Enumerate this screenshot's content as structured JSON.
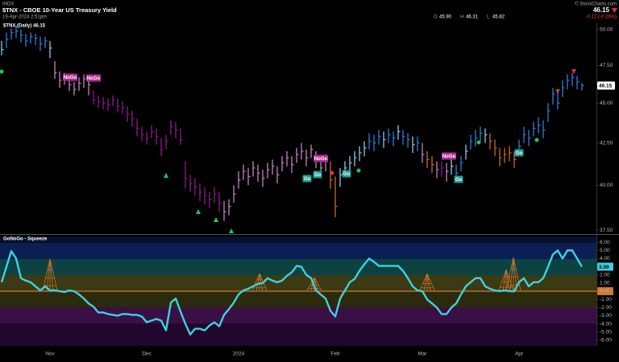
{
  "header": {
    "exchange": "INDX",
    "title": "$TNX - CBOE 10-Year US Treasury Yield",
    "date": "19-Apr-2024 2:51pm",
    "watermark": "© StockCharts.com",
    "last": "46.15",
    "ohlc": [
      {
        "label": "O",
        "value": "45.90"
      },
      {
        "label": "H",
        "value": "46.31"
      },
      {
        "label": "L",
        "value": "45.82"
      }
    ],
    "change": "-0.12 (-0.26%)"
  },
  "chart_data": [
    {
      "type": "ohlc",
      "title": "$TNX (Daily) 46.15",
      "log_scale": true,
      "categories": [
        null,
        null,
        null,
        null,
        null,
        null,
        null,
        null,
        null,
        null,
        "Nov",
        null,
        null,
        null,
        null,
        null,
        null,
        null,
        null,
        null,
        null,
        null,
        null,
        null,
        null,
        null,
        null,
        null,
        null,
        null,
        "Dec",
        null,
        null,
        null,
        null,
        null,
        null,
        null,
        null,
        null,
        null,
        null,
        null,
        null,
        null,
        null,
        null,
        null,
        null,
        "2024",
        null,
        null,
        null,
        null,
        null,
        null,
        null,
        null,
        null,
        null,
        null,
        null,
        null,
        null,
        null,
        null,
        null,
        null,
        null,
        "Feb",
        null,
        null,
        null,
        null,
        null,
        null,
        null,
        null,
        null,
        null,
        null,
        null,
        null,
        null,
        null,
        null,
        null,
        "Mar",
        null,
        null,
        null,
        null,
        null,
        null,
        null,
        null,
        null,
        null,
        null,
        null,
        null,
        null,
        null,
        null,
        null,
        null,
        null,
        "Apr",
        null,
        null,
        null,
        null,
        null,
        null,
        null,
        null,
        null,
        null,
        null,
        null,
        null
      ],
      "close": [
        48.6,
        49.3,
        49.8,
        49.9,
        49.6,
        49.2,
        49.5,
        49.4,
        49.0,
        49.2,
        48.7,
        47.0,
        46.5,
        46.8,
        46.2,
        45.9,
        46.3,
        46.6,
        46.2,
        45.2,
        45.1,
        45.0,
        44.9,
        45.2,
        44.8,
        44.7,
        44.3,
        44.0,
        43.4,
        43.0,
        42.8,
        43.2,
        42.9,
        42.1,
        42.6,
        43.5,
        43.3,
        42.7,
        40.4,
        40.1,
        39.9,
        39.6,
        39.4,
        39.2,
        39.5,
        39.0,
        38.5,
        38.8,
        39.5,
        40.3,
        40.8,
        40.5,
        41.0,
        40.7,
        40.4,
        40.9,
        41.1,
        40.6,
        41.3,
        41.6,
        41.2,
        41.8,
        42.0,
        41.6,
        42.1,
        41.5,
        41.0,
        41.4,
        40.3,
        38.8,
        40.6,
        41.0,
        41.3,
        41.6,
        41.9,
        42.2,
        42.6,
        42.5,
        42.9,
        42.7,
        43.0,
        42.8,
        43.2,
        42.9,
        42.7,
        42.4,
        42.5,
        41.8,
        41.5,
        41.2,
        40.9,
        41.0,
        40.8,
        41.1,
        40.7,
        41.3,
        42.0,
        42.6,
        42.8,
        43.1,
        43.0,
        42.6,
        42.2,
        41.6,
        41.8,
        41.9,
        41.5,
        42.3,
        43.0,
        42.8,
        43.4,
        43.6,
        43.3,
        44.5,
        45.6,
        45.0,
        46.0,
        46.5,
        46.7,
        46.4,
        46.15
      ],
      "high": [
        49.2,
        49.8,
        50.1,
        50.3,
        50.0,
        49.7,
        49.8,
        49.7,
        49.5,
        49.5,
        49.2,
        47.8,
        47.1,
        47.0,
        46.8,
        46.4,
        46.7,
        46.9,
        46.7,
        45.8,
        45.5,
        45.4,
        45.3,
        45.5,
        45.3,
        45.1,
        44.8,
        44.5,
        44.0,
        43.5,
        43.2,
        43.6,
        43.4,
        42.8,
        43.0,
        43.9,
        43.8,
        43.4,
        41.4,
        40.6,
        40.4,
        40.1,
        39.9,
        39.6,
        39.9,
        39.6,
        39.1,
        39.2,
        40.0,
        40.8,
        41.2,
        41.0,
        41.4,
        41.2,
        40.9,
        41.3,
        41.5,
        41.1,
        41.7,
        42.0,
        41.7,
        42.2,
        42.5,
        42.1,
        42.4,
        42.0,
        41.5,
        41.8,
        41.4,
        40.5,
        41.0,
        41.4,
        41.7,
        42.0,
        42.3,
        42.6,
        43.1,
        43.0,
        43.3,
        43.2,
        43.4,
        43.2,
        43.6,
        43.3,
        43.1,
        42.9,
        42.9,
        42.5,
        42.0,
        41.7,
        41.4,
        41.4,
        41.3,
        41.5,
        41.2,
        41.7,
        42.4,
        43.0,
        43.3,
        43.5,
        43.4,
        43.1,
        42.7,
        42.2,
        42.2,
        42.3,
        42.0,
        42.7,
        43.5,
        43.3,
        43.8,
        44.1,
        43.9,
        45.0,
        46.0,
        45.8,
        46.5,
        46.9,
        47.0,
        46.8,
        46.31
      ],
      "low": [
        48.2,
        48.7,
        49.3,
        49.4,
        49.1,
        48.8,
        49.0,
        48.9,
        48.5,
        48.7,
        48.0,
        46.6,
        46.0,
        46.2,
        45.8,
        45.5,
        45.8,
        46.0,
        45.5,
        44.9,
        44.7,
        44.6,
        44.5,
        44.8,
        44.4,
        44.3,
        43.8,
        43.5,
        42.9,
        42.6,
        42.4,
        42.8,
        42.4,
        41.7,
        42.1,
        43.0,
        42.8,
        42.4,
        39.8,
        39.6,
        39.4,
        39.1,
        38.9,
        38.7,
        39.0,
        38.5,
        38.0,
        38.3,
        39.0,
        39.8,
        40.3,
        40.0,
        40.5,
        40.2,
        39.9,
        40.4,
        40.6,
        40.1,
        40.8,
        41.1,
        40.7,
        41.3,
        41.5,
        41.1,
        41.6,
        41.0,
        40.4,
        40.8,
        39.8,
        38.2,
        39.9,
        40.5,
        40.8,
        41.1,
        41.4,
        41.7,
        42.1,
        42.0,
        42.4,
        42.2,
        42.5,
        42.3,
        42.7,
        42.4,
        42.2,
        41.9,
        42.0,
        41.3,
        41.0,
        40.7,
        40.4,
        40.5,
        40.2,
        40.6,
        40.2,
        40.8,
        41.5,
        42.1,
        42.3,
        42.6,
        42.5,
        42.1,
        41.7,
        41.1,
        41.3,
        41.4,
        41.0,
        41.8,
        42.5,
        42.3,
        42.9,
        43.1,
        42.8,
        43.8,
        44.9,
        44.6,
        45.4,
        45.9,
        46.1,
        45.9,
        45.82
      ],
      "colors": [
        "#8fc8ee",
        "#2f7fd8",
        "#2f7fd8",
        "#2f7fd8",
        "#2f7fd8",
        "#2f7fd8",
        "#2f7fd8",
        "#2f7fd8",
        "#2f7fd8",
        "#2f7fd8",
        "#8fc8ee",
        "#c284c2",
        "#c284c2",
        "#c284c2",
        "#c284c2",
        "#c284c2",
        "#c284c2",
        "#c284c2",
        "#c284c2",
        "#8a1c8a",
        "#8a1c8a",
        "#8a1c8a",
        "#8a1c8a",
        "#8a1c8a",
        "#8a1c8a",
        "#8a1c8a",
        "#8a1c8a",
        "#8a1c8a",
        "#8a1c8a",
        "#8a1c8a",
        "#8a1c8a",
        "#8a1c8a",
        "#8a1c8a",
        "#8a1c8a",
        "#8a1c8a",
        "#8a1c8a",
        "#8a1c8a",
        "#8a1c8a",
        "#8a1c8a",
        "#8a1c8a",
        "#8a1c8a",
        "#8a1c8a",
        "#8a1c8a",
        "#8a1c8a",
        "#8a1c8a",
        "#8a1c8a",
        "#c284c2",
        "#c284c2",
        "#c284c2",
        "#c284c2",
        "#c284c2",
        "#c284c2",
        "#c284c2",
        "#c284c2",
        "#c284c2",
        "#c284c2",
        "#c284c2",
        "#c284c2",
        "#c284c2",
        "#c284c2",
        "#c284c2",
        "#c284c2",
        "#c284c2",
        "#c284c2",
        "#c284c2",
        "#c284c2",
        "#c284c2",
        "#c284c2",
        "#c96a2e",
        "#c96a2e",
        "#8fc8ee",
        "#8fc8ee",
        "#8fc8ee",
        "#8fc8ee",
        "#8fc8ee",
        "#8fc8ee",
        "#2f7fd8",
        "#2f7fd8",
        "#2f7fd8",
        "#8fc8ee",
        "#2f7fd8",
        "#2f7fd8",
        "#8fc8ee",
        "#2f7fd8",
        "#2f7fd8",
        "#8fc8ee",
        "#2f7fd8",
        "#c284c2",
        "#c96a2e",
        "#c96a2e",
        "#c284c2",
        "#8a1c8a",
        "#c284c2",
        "#8fc8ee",
        "#2f7fd8",
        "#2f7fd8",
        "#8fc8ee",
        "#2f7fd8",
        "#2f7fd8",
        "#2f7fd8",
        "#8fc8ee",
        "#c96a2e",
        "#c96a2e",
        "#c96a2e",
        "#c96a2e",
        "#c96a2e",
        "#c96a2e",
        "#2f7fd8",
        "#2f7fd8",
        "#2f7fd8",
        "#2f7fd8",
        "#2f7fd8",
        "#2f7fd8",
        "#2f7fd8",
        "#2f7fd8",
        "#2f7fd8",
        "#2f7fd8",
        "#2f7fd8",
        "#2f7fd8",
        "#2f7fd8",
        "#2f7fd8"
      ],
      "ylim": [
        37.33,
        50.52
      ],
      "yticks": [
        {
          "value": 37.5,
          "label": "37.50"
        },
        {
          "value": 40,
          "label": "40.00"
        },
        {
          "value": 42.5,
          "label": "42.50"
        },
        {
          "value": 45,
          "label": "45.00"
        },
        {
          "value": 47.5,
          "label": "47.50"
        },
        {
          "value": 50,
          "label": "50.00"
        }
      ],
      "annotations": [
        "NoGo",
        "NoGo",
        "NoGo",
        "Go",
        "Go",
        "Go",
        "NoGo",
        "Go",
        "Go"
      ]
    },
    {
      "type": "line",
      "title": "GoNoGo - Squeeze",
      "color": "#3fd0e0",
      "values": [
        1.1,
        3.0,
        4.9,
        4.0,
        1.6,
        1.3,
        1.1,
        0.6,
        0.1,
        0.6,
        0.1,
        0.1,
        0.0,
        -0.1,
        0.1,
        0.0,
        -0.4,
        -0.9,
        -1.5,
        -1.9,
        -2.6,
        -2.6,
        -2.8,
        -2.9,
        -3.0,
        -2.8,
        -2.8,
        -2.9,
        -2.9,
        -3.1,
        -3.8,
        -3.6,
        -3.4,
        -3.6,
        -4.8,
        -1.4,
        -0.9,
        -2.5,
        -4.0,
        -5.3,
        -4.6,
        -4.6,
        -4.8,
        -4.2,
        -3.8,
        -4.3,
        -2.9,
        -2.2,
        -1.4,
        -0.4,
        0.1,
        0.3,
        0.6,
        0.9,
        1.0,
        1.6,
        1.3,
        1.1,
        1.3,
        1.9,
        2.3,
        3.1,
        3.0,
        2.0,
        1.6,
        0.1,
        -0.4,
        -0.9,
        -2.4,
        -3.1,
        -0.9,
        0.1,
        1.1,
        1.5,
        2.5,
        3.3,
        4.0,
        3.6,
        3.1,
        3.1,
        3.1,
        3.1,
        3.1,
        2.5,
        1.6,
        0.6,
        0.1,
        0.0,
        -1.0,
        -1.5,
        -2.0,
        -2.8,
        -2.8,
        -2.0,
        -1.5,
        -0.4,
        0.6,
        1.1,
        1.6,
        1.6,
        0.6,
        0.3,
        0.1,
        0.0,
        0.1,
        0.0,
        0.0,
        1.1,
        1.6,
        0.6,
        1.1,
        1.1,
        1.6,
        3.0,
        4.5,
        5.0,
        4.0,
        5.0,
        5.0,
        4.0,
        3.0
      ],
      "last_label": "3.00",
      "ylim": [
        -6.7,
        6.7
      ],
      "yticks": [
        {
          "value": -6,
          "label": "-6.00"
        },
        {
          "value": -5,
          "label": "-5.00"
        },
        {
          "value": -4,
          "label": "-4.00"
        },
        {
          "value": -3,
          "label": "-3.00"
        },
        {
          "value": -2,
          "label": "-2.00"
        },
        {
          "value": -1,
          "label": "-1.00"
        },
        {
          "value": 0,
          "label": "0.00"
        },
        {
          "value": 1,
          "label": "1.00"
        },
        {
          "value": 2,
          "label": "2.00"
        },
        {
          "value": 3,
          "label": "3.00"
        },
        {
          "value": 4,
          "label": "4.00"
        },
        {
          "value": 5,
          "label": "5.00"
        },
        {
          "value": 6,
          "label": "6.00"
        }
      ]
    }
  ]
}
